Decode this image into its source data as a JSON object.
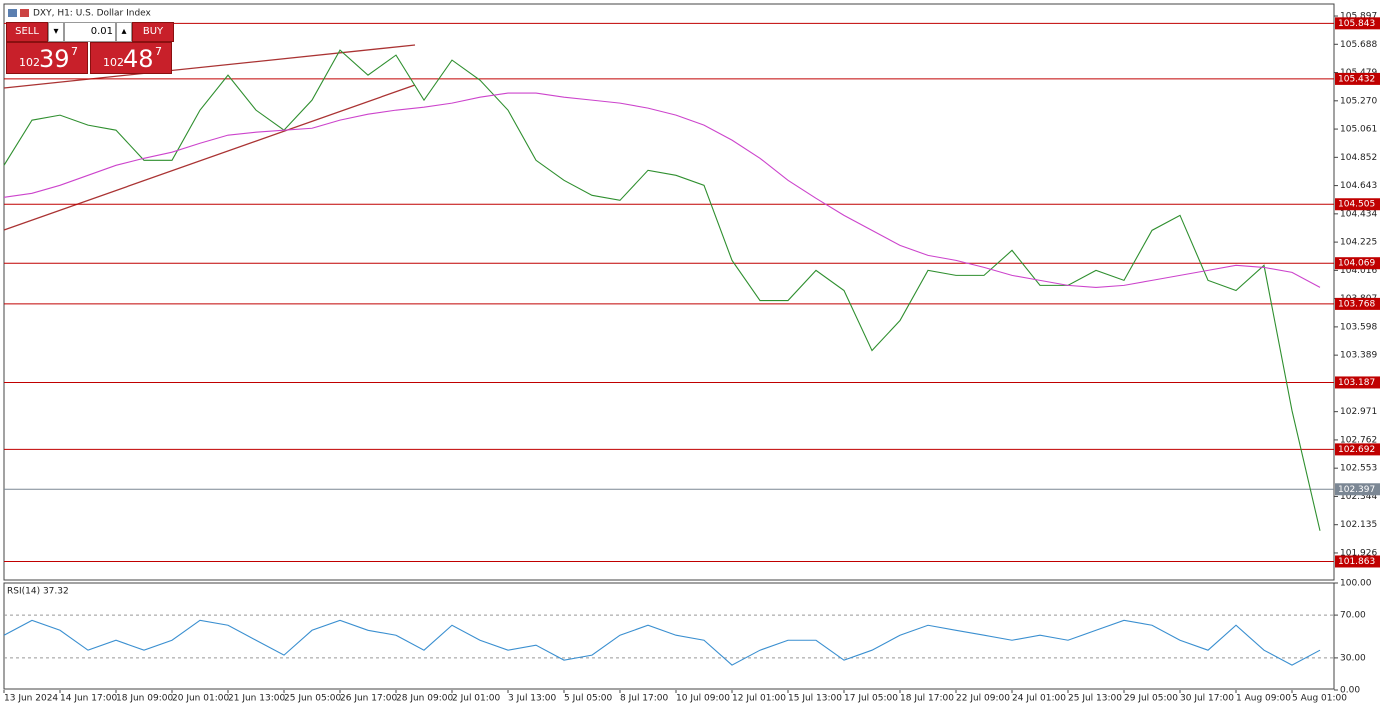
{
  "chart_data": [
    {
      "type": "line",
      "title": "DXY, H1:  U.S. Dollar Index",
      "ylim": [
        101.726,
        105.986
      ],
      "yticks": [
        105.897,
        105.688,
        105.479,
        {
          "value": 105.27,
          "label": "105.270"
        },
        105.061,
        104.852,
        104.643,
        104.434,
        104.225,
        104.016,
        103.807,
        103.598,
        103.389,
        102.971,
        102.762,
        102.553,
        102.344,
        102.135,
        101.926
      ],
      "series": [
        {
          "color": "#2f8f2f",
          "values": [
            104.793,
            105.127,
            105.164,
            105.09,
            105.053,
            104.83,
            104.83,
            105.201,
            105.46,
            105.201,
            105.053,
            105.275,
            105.645,
            105.46,
            105.608,
            105.275,
            105.571,
            105.423,
            105.201,
            104.83,
            104.682,
            104.571,
            104.534,
            104.756,
            104.719,
            104.645,
            104.09,
            103.793,
            103.793,
            104.016,
            103.867,
            103.423,
            103.645,
            104.016,
            103.979,
            103.979,
            104.164,
            103.905,
            103.905,
            104.016,
            103.942,
            104.312,
            104.423,
            103.942,
            103.867,
            104.053,
            102.979,
            102.09
          ]
        },
        {
          "color": "#cc44cc",
          "values": [
            104.556,
            104.586,
            104.645,
            104.719,
            104.793,
            104.845,
            104.89,
            104.956,
            105.016,
            105.038,
            105.053,
            105.067,
            105.127,
            105.171,
            105.201,
            105.223,
            105.253,
            105.297,
            105.327,
            105.327,
            105.297,
            105.275,
            105.253,
            105.216,
            105.164,
            105.09,
            104.979,
            104.845,
            104.682,
            104.549,
            104.423,
            104.312,
            104.201,
            104.127,
            104.09,
            104.038,
            103.979,
            103.942,
            103.905,
            103.89,
            103.905,
            103.942,
            103.979,
            104.016,
            104.053,
            104.038,
            104.001,
            103.89
          ]
        }
      ],
      "levels": {
        "color": "#c00000",
        "values": [
          105.843,
          105.432,
          104.505,
          104.069,
          103.768,
          103.187,
          102.692,
          101.863
        ]
      },
      "current_price": {
        "color": "#7b8794",
        "value": 102.397
      }
    },
    {
      "type": "line",
      "title": "RSI(14) 37.32",
      "ylim": [
        0,
        100
      ],
      "yticks": [
        {
          "value": 100,
          "label": "100.00"
        },
        {
          "value": 70,
          "label": "70.00"
        },
        {
          "value": 30,
          "label": "30.00"
        },
        {
          "value": 0,
          "label": "0.00"
        }
      ],
      "categories": [
        "13 Jun 2024",
        null,
        "14 Jun 17:00",
        null,
        "18 Jun 09:00",
        null,
        "20 Jun 01:00",
        null,
        "21 Jun 13:00",
        null,
        "25 Jun 05:00",
        null,
        "26 Jun 17:00",
        null,
        "28 Jun 09:00",
        null,
        "2 Jul 01:00",
        null,
        "3 Jul 13:00",
        null,
        "5 Jul 05:00",
        null,
        "8 Jul 17:00",
        null,
        "10 Jul 09:00",
        null,
        "12 Jul 01:00",
        null,
        "15 Jul 13:00",
        null,
        "17 Jul 05:00",
        null,
        "18 Jul 17:00",
        null,
        "22 Jul 09:00",
        null,
        "24 Jul 01:00",
        null,
        "25 Jul 13:00",
        null,
        "29 Jul 05:00",
        null,
        "30 Jul 17:00",
        null,
        "1 Aug 09:00",
        null,
        "5 Aug 01:00",
        null
      ],
      "series": [
        {
          "color": "#3a8fd0",
          "values": [
            51.2,
            65.1,
            55.8,
            37.2,
            46.5,
            37.2,
            46.5,
            65.1,
            60.5,
            46.5,
            32.6,
            55.8,
            65.1,
            55.8,
            51.2,
            37.2,
            60.5,
            46.5,
            37.2,
            41.9,
            27.9,
            32.6,
            51.2,
            60.5,
            51.2,
            46.5,
            23.3,
            37.2,
            46.5,
            46.5,
            27.9,
            37.2,
            51.2,
            60.5,
            55.8,
            51.2,
            46.5,
            51.2,
            46.5,
            55.8,
            65.1,
            60.5,
            46.5,
            37.2,
            60.5,
            37.2,
            23.3,
            37.2
          ]
        }
      ],
      "level_lines": [
        70,
        30
      ]
    }
  ],
  "trade_panel": {
    "sell": "SELL",
    "volume": "0.01",
    "buy": "BUY",
    "bid": {
      "big": "102",
      "main": "39",
      "sup": "7"
    },
    "ask": {
      "big": "102",
      "main": "48",
      "sup": "7"
    }
  }
}
